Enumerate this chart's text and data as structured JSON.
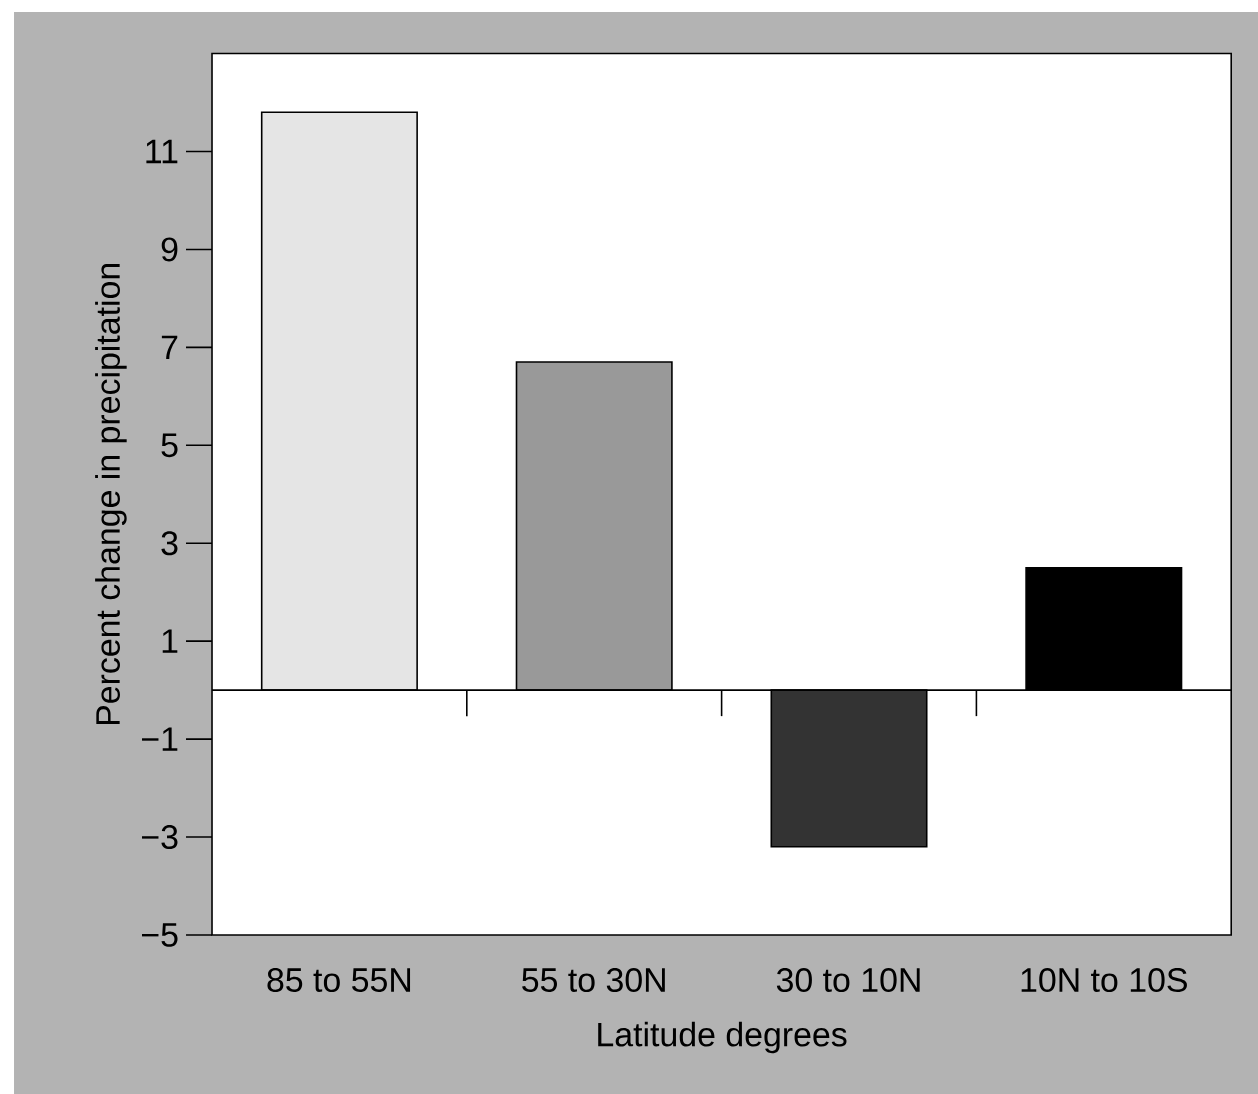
{
  "chart_data": {
    "type": "bar",
    "xlabel": "Latitude degrees",
    "ylabel": "Percent change in precipitation",
    "categories": [
      "85 to 55N",
      "55 to 30N",
      "30 to 10N",
      "10N to 10S"
    ],
    "values": [
      11.8,
      6.7,
      -3.2,
      2.5
    ],
    "colors": [
      "#e5e5e5",
      "#999999",
      "#333333",
      "#000000"
    ],
    "ylim": [
      -5,
      13
    ],
    "yticks": [
      {
        "value": 11,
        "label": "11"
      },
      {
        "value": 9,
        "label": "9"
      },
      {
        "value": 7,
        "label": "7"
      },
      {
        "value": 5,
        "label": "5"
      },
      {
        "value": 3,
        "label": "3"
      },
      {
        "value": 1,
        "label": "1"
      },
      {
        "value": -1,
        "label": "−1"
      },
      {
        "value": -3,
        "label": "−3"
      },
      {
        "value": -5,
        "label": "−5"
      }
    ],
    "grid": false
  }
}
